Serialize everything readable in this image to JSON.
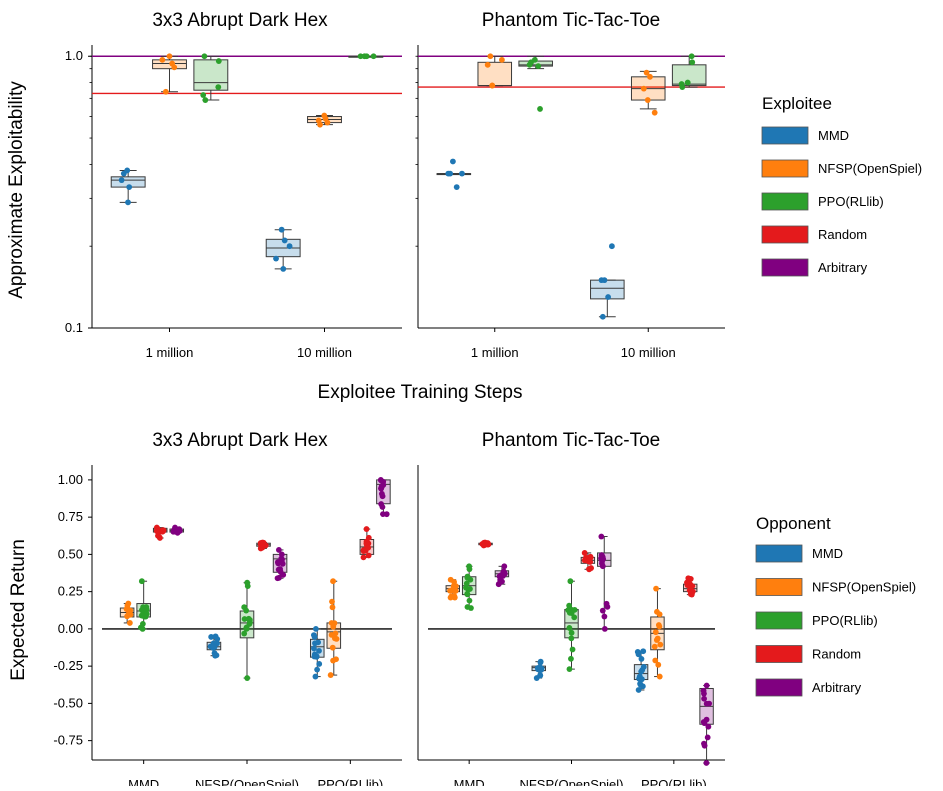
{
  "figure": {
    "top_xlabel": "Exploitee Training Steps"
  },
  "chart_data": [
    {
      "type": "box",
      "row": "top",
      "title": "3x3 Abrupt Dark Hex",
      "ylabel": "Approximate Exploitability",
      "yscale": "log",
      "ylim": [
        0.1,
        1.1
      ],
      "yticks": [
        {
          "value": 0.1,
          "label": "0.1"
        },
        {
          "value": 1.0,
          "label": "1.0"
        }
      ],
      "categories": [
        "1 million",
        "10 million"
      ],
      "legend_title": "Exploitee",
      "series": [
        {
          "name": "MMD",
          "color": "#1f77b4",
          "boxes": [
            {
              "min": 0.29,
              "q1": 0.33,
              "median": 0.35,
              "q3": 0.36,
              "max": 0.38,
              "points": [
                0.29,
                0.33,
                0.35,
                0.37,
                0.38
              ]
            },
            {
              "min": 0.165,
              "q1": 0.183,
              "median": 0.197,
              "q3": 0.212,
              "max": 0.23,
              "points": [
                0.165,
                0.18,
                0.2,
                0.21,
                0.23
              ]
            }
          ]
        },
        {
          "name": "NFSP(OpenSpiel)",
          "color": "#ff7f0e",
          "boxes": [
            {
              "min": 0.74,
              "q1": 0.9,
              "median": 0.94,
              "q3": 0.97,
              "max": 1.0,
              "points": [
                0.74,
                0.91,
                0.94,
                0.97,
                1.0
              ]
            },
            {
              "min": 0.56,
              "q1": 0.57,
              "median": 0.585,
              "q3": 0.6,
              "max": 0.605,
              "points": [
                0.56,
                0.57,
                0.58,
                0.59,
                0.605
              ]
            }
          ]
        },
        {
          "name": "PPO(RLlib)",
          "color": "#2ca02c",
          "boxes": [
            {
              "min": 0.69,
              "q1": 0.75,
              "median": 0.8,
              "q3": 0.97,
              "max": 1.0,
              "points": [
                0.69,
                0.72,
                0.77,
                0.96,
                1.0
              ]
            },
            {
              "min": 1.0,
              "q1": 1.0,
              "median": 1.0,
              "q3": 1.0,
              "max": 1.0,
              "points": [
                1.0,
                1.0,
                1.0,
                1.0,
                1.0
              ]
            }
          ]
        }
      ],
      "hlines": [
        {
          "name": "Random",
          "color": "#e41a1c",
          "value": 0.73
        },
        {
          "name": "Arbitrary",
          "color": "#800080",
          "value": 1.0
        }
      ]
    },
    {
      "type": "box",
      "row": "top",
      "title": "Phantom Tic-Tac-Toe",
      "yscale": "log",
      "ylim": [
        0.1,
        1.1
      ],
      "categories": [
        "1 million",
        "10 million"
      ],
      "series": [
        {
          "name": "MMD",
          "color": "#1f77b4",
          "boxes": [
            {
              "min": 0.37,
              "q1": 0.37,
              "median": 0.37,
              "q3": 0.37,
              "max": 0.37,
              "points": [
                0.33,
                0.37,
                0.37,
                0.37,
                0.41
              ]
            },
            {
              "min": 0.11,
              "q1": 0.128,
              "median": 0.14,
              "q3": 0.15,
              "max": 0.15,
              "points": [
                0.11,
                0.13,
                0.15,
                0.15,
                0.2
              ]
            }
          ]
        },
        {
          "name": "NFSP(OpenSpiel)",
          "color": "#ff7f0e",
          "boxes": [
            {
              "min": 0.78,
              "q1": 0.78,
              "median": 0.78,
              "q3": 0.95,
              "max": 1.0,
              "points": [
                0.78,
                0.78,
                0.93,
                0.97,
                1.0
              ]
            },
            {
              "min": 0.64,
              "q1": 0.69,
              "median": 0.76,
              "q3": 0.84,
              "max": 0.88,
              "points": [
                0.62,
                0.69,
                0.76,
                0.84,
                0.87
              ]
            }
          ]
        },
        {
          "name": "PPO(RLlib)",
          "color": "#2ca02c",
          "boxes": [
            {
              "min": 0.9,
              "q1": 0.92,
              "median": 0.93,
              "q3": 0.96,
              "max": 1.0,
              "points": [
                0.64,
                0.92,
                0.93,
                0.95,
                0.97
              ]
            },
            {
              "min": 0.77,
              "q1": 0.78,
              "median": 0.79,
              "q3": 0.93,
              "max": 1.0,
              "points": [
                0.77,
                0.79,
                0.8,
                0.95,
                1.0
              ]
            }
          ]
        }
      ],
      "hlines": [
        {
          "name": "Random",
          "color": "#e41a1c",
          "value": 0.77
        },
        {
          "name": "Arbitrary",
          "color": "#800080",
          "value": 1.0
        }
      ]
    },
    {
      "type": "box",
      "row": "bottom",
      "title": "3x3 Abrupt Dark Hex",
      "ylabel": "Expected Return",
      "ylim": [
        -0.88,
        1.1
      ],
      "yticks": [
        1.0,
        0.75,
        0.5,
        0.25,
        0.0,
        -0.25,
        -0.5,
        -0.75
      ],
      "ytick_labels": [
        "1.00",
        "0.75",
        "0.50",
        "0.25",
        "0.00",
        "-0.25",
        "-0.50",
        "-0.75"
      ],
      "categories": [
        "MMD",
        "NFSP(OpenSpiel)",
        "PPO(RLlib)"
      ],
      "legend_title": "Opponent",
      "series": [
        {
          "name": "MMD",
          "color": "#1f77b4",
          "boxes": [
            null,
            {
              "min": -0.18,
              "q1": -0.14,
              "median": -0.12,
              "q3": -0.09,
              "max": -0.05
            },
            {
              "min": -0.32,
              "q1": -0.19,
              "median": -0.12,
              "q3": -0.07,
              "max": 0.0
            }
          ]
        },
        {
          "name": "NFSP(OpenSpiel)",
          "color": "#ff7f0e",
          "boxes": [
            {
              "min": 0.04,
              "q1": 0.08,
              "median": 0.11,
              "q3": 0.14,
              "max": 0.17
            },
            null,
            {
              "min": -0.31,
              "q1": -0.13,
              "median": -0.02,
              "q3": 0.04,
              "max": 0.32
            }
          ]
        },
        {
          "name": "PPO(RLlib)",
          "color": "#2ca02c",
          "boxes": [
            {
              "min": 0.0,
              "q1": 0.08,
              "median": 0.12,
              "q3": 0.17,
              "max": 0.32
            },
            {
              "min": -0.33,
              "q1": -0.06,
              "median": 0.04,
              "q3": 0.12,
              "max": 0.31
            },
            null
          ]
        },
        {
          "name": "Random",
          "color": "#e41a1c",
          "boxes": [
            {
              "min": 0.61,
              "q1": 0.65,
              "median": 0.665,
              "q3": 0.675,
              "max": 0.68
            },
            {
              "min": 0.54,
              "q1": 0.555,
              "median": 0.565,
              "q3": 0.575,
              "max": 0.58
            },
            {
              "min": 0.48,
              "q1": 0.5,
              "median": 0.55,
              "q3": 0.6,
              "max": 0.67
            }
          ]
        },
        {
          "name": "Arbitrary",
          "color": "#800080",
          "boxes": [
            {
              "min": 0.645,
              "q1": 0.65,
              "median": 0.66,
              "q3": 0.67,
              "max": 0.68
            },
            {
              "min": 0.34,
              "q1": 0.38,
              "median": 0.47,
              "q3": 0.5,
              "max": 0.53
            },
            {
              "min": 0.77,
              "q1": 0.84,
              "median": 0.97,
              "q3": 1.0,
              "max": 1.0
            }
          ]
        }
      ],
      "hlines": [
        {
          "value": 0.0,
          "color": "#000000"
        }
      ]
    },
    {
      "type": "box",
      "row": "bottom",
      "title": "Phantom Tic-Tac-Toe",
      "ylim": [
        -0.88,
        1.1
      ],
      "categories": [
        "MMD",
        "NFSP(OpenSpiel)",
        "PPO(RLlib)"
      ],
      "series": [
        {
          "name": "MMD",
          "color": "#1f77b4",
          "boxes": [
            null,
            {
              "min": -0.33,
              "q1": -0.28,
              "median": -0.26,
              "q3": -0.25,
              "max": -0.22
            },
            {
              "min": -0.41,
              "q1": -0.34,
              "median": -0.3,
              "q3": -0.24,
              "max": -0.15
            }
          ]
        },
        {
          "name": "NFSP(OpenSpiel)",
          "color": "#ff7f0e",
          "boxes": [
            {
              "min": 0.21,
              "q1": 0.25,
              "median": 0.27,
              "q3": 0.29,
              "max": 0.33
            },
            null,
            {
              "min": -0.32,
              "q1": -0.14,
              "median": -0.03,
              "q3": 0.08,
              "max": 0.27
            }
          ]
        },
        {
          "name": "PPO(RLlib)",
          "color": "#2ca02c",
          "boxes": [
            {
              "min": 0.14,
              "q1": 0.23,
              "median": 0.29,
              "q3": 0.35,
              "max": 0.42
            },
            {
              "min": -0.27,
              "q1": -0.06,
              "median": 0.04,
              "q3": 0.13,
              "max": 0.32
            },
            null
          ]
        },
        {
          "name": "Random",
          "color": "#e41a1c",
          "boxes": [
            {
              "min": 0.56,
              "q1": 0.565,
              "median": 0.57,
              "q3": 0.575,
              "max": 0.58
            },
            {
              "min": 0.4,
              "q1": 0.44,
              "median": 0.46,
              "q3": 0.48,
              "max": 0.51
            },
            {
              "min": 0.23,
              "q1": 0.25,
              "median": 0.27,
              "q3": 0.3,
              "max": 0.34
            }
          ]
        },
        {
          "name": "Arbitrary",
          "color": "#800080",
          "boxes": [
            {
              "min": 0.3,
              "q1": 0.35,
              "median": 0.37,
              "q3": 0.39,
              "max": 0.42
            },
            {
              "min": 0.0,
              "q1": 0.42,
              "median": 0.46,
              "q3": 0.51,
              "max": 0.62
            },
            {
              "min": -0.9,
              "q1": -0.64,
              "median": -0.52,
              "q3": -0.4,
              "max": -0.38
            }
          ]
        }
      ],
      "hlines": [
        {
          "value": 0.0,
          "color": "#000000"
        }
      ]
    }
  ],
  "legends": {
    "exploitee": {
      "title": "Exploitee",
      "items": [
        {
          "label": "MMD",
          "color": "#1f77b4"
        },
        {
          "label": "NFSP(OpenSpiel)",
          "color": "#ff7f0e"
        },
        {
          "label": "PPO(RLlib)",
          "color": "#2ca02c"
        },
        {
          "label": "Random",
          "color": "#e41a1c"
        },
        {
          "label": "Arbitrary",
          "color": "#800080"
        }
      ]
    },
    "opponent": {
      "title": "Opponent",
      "items": [
        {
          "label": "MMD",
          "color": "#1f77b4"
        },
        {
          "label": "NFSP(OpenSpiel)",
          "color": "#ff7f0e"
        },
        {
          "label": "PPO(RLlib)",
          "color": "#2ca02c"
        },
        {
          "label": "Random",
          "color": "#e41a1c"
        },
        {
          "label": "Arbitrary",
          "color": "#800080"
        }
      ]
    }
  }
}
